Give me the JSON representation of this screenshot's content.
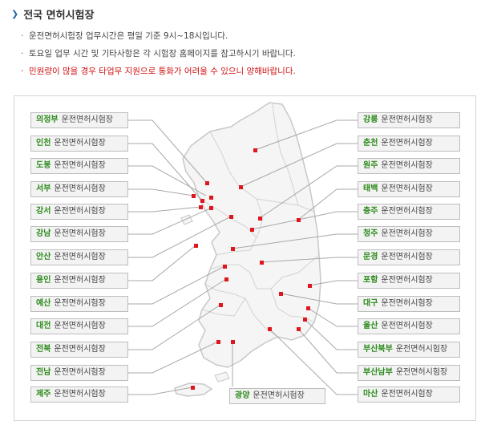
{
  "header": {
    "title": "전국 면허시험장",
    "icon": "chevron-right-icon"
  },
  "notes": [
    "운전면허시험장 업무시간은 평일 기준 9시~18시입니다.",
    "토요일 업무 시간 및 기타사항은 각 시험장 홈페이지를 참고하시기 바랍니다.",
    "민원량이 많을 경우 타업무 지원으로 통화가 어려울 수 있으니 양해바랍니다."
  ],
  "colors": {
    "accent": "#2a63a8",
    "name_green": "#2c8a1b",
    "warning_red": "#d01010",
    "marker_red": "#e0161d"
  },
  "center_suffix": "운전면허시험장",
  "centers": [
    {
      "name": "의정부",
      "suffix": "운전면허시험장"
    },
    {
      "name": "인천",
      "suffix": "운전면허시험장"
    },
    {
      "name": "도봉",
      "suffix": "운전면허시험장"
    },
    {
      "name": "서부",
      "suffix": "운전면허시험장"
    },
    {
      "name": "강서",
      "suffix": "운전면허시험장"
    },
    {
      "name": "강남",
      "suffix": "운전면허시험장"
    },
    {
      "name": "안산",
      "suffix": "운전면허시험장"
    },
    {
      "name": "용인",
      "suffix": "운전면허시험장"
    },
    {
      "name": "예산",
      "suffix": "운전면허시험장"
    },
    {
      "name": "대전",
      "suffix": "운전면허시험장"
    },
    {
      "name": "전북",
      "suffix": "운전면허시험장"
    },
    {
      "name": "전남",
      "suffix": "운전면허시험장"
    },
    {
      "name": "제주",
      "suffix": "운전면허시험장"
    },
    {
      "name": "강릉",
      "suffix": "운전면허시험장"
    },
    {
      "name": "춘천",
      "suffix": "운전면허시험장"
    },
    {
      "name": "원주",
      "suffix": "운전면허시험장"
    },
    {
      "name": "태백",
      "suffix": "운전면허시험장"
    },
    {
      "name": "충주",
      "suffix": "운전면허시험장"
    },
    {
      "name": "청주",
      "suffix": "운전면허시험장"
    },
    {
      "name": "문경",
      "suffix": "운전면허시험장"
    },
    {
      "name": "포항",
      "suffix": "운전면허시험장"
    },
    {
      "name": "대구",
      "suffix": "운전면허시험장"
    },
    {
      "name": "울산",
      "suffix": "운전면허시험장"
    },
    {
      "name": "부산북부",
      "suffix": "운전면허시험장"
    },
    {
      "name": "부산남부",
      "suffix": "운전면허시험장"
    },
    {
      "name": "광양",
      "suffix": "운전면허시험장"
    },
    {
      "name": "마산",
      "suffix": "운전면허시험장"
    }
  ]
}
